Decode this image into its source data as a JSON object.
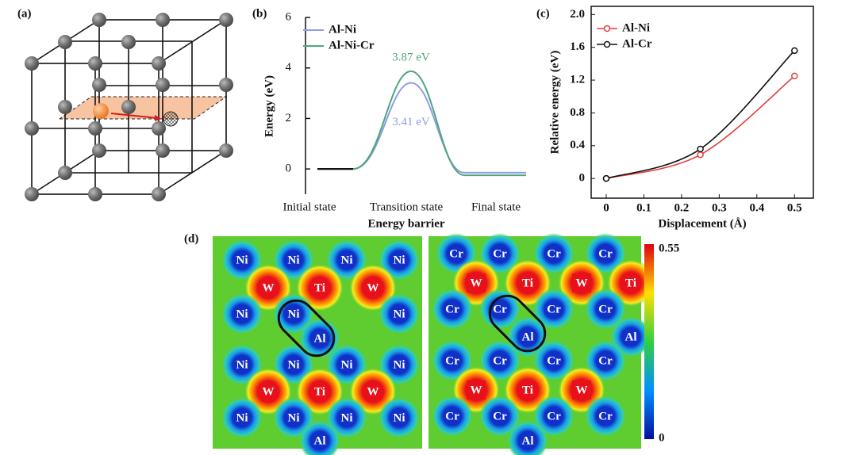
{
  "panel_labels": [
    "(a)",
    "(b)",
    "(c)",
    "(d)"
  ],
  "chart_data": [
    {
      "type": "barrier",
      "ylabel": "Energy (eV)",
      "xlabel": "Energy barrier",
      "categories": [
        "Initial state",
        "Transition state",
        "Final state"
      ],
      "ylim": [
        -1,
        6
      ],
      "yticks": [
        0,
        2,
        4,
        6
      ],
      "series": [
        {
          "name": "Al-Ni",
          "color": "#8d9de6",
          "values": [
            0,
            3.41,
            -0.15
          ],
          "value_labels": [
            null,
            "3.41 eV",
            null
          ]
        },
        {
          "name": "Al-Ni-Cr",
          "color": "#4ea67c",
          "values": [
            0,
            3.87,
            -0.25
          ],
          "value_labels": [
            null,
            "3.87 eV",
            null
          ]
        }
      ],
      "legend": "upper left"
    },
    {
      "type": "line",
      "ylabel": "Relative energy (eV)",
      "xlabel": "Displacement (Å)",
      "x": [
        0,
        0.25,
        0.5
      ],
      "xlim": [
        -0.04,
        0.55
      ],
      "ylim": [
        -0.24,
        2.1
      ],
      "xticks": [
        0,
        0.1,
        0.2,
        0.3,
        0.4,
        0.5
      ],
      "yticks": [
        0,
        0.4,
        0.8,
        1.2,
        1.6,
        {
          "value": 2,
          "label": "2.0"
        }
      ],
      "series": [
        {
          "name": "Al-Ni",
          "color": "#e0403c",
          "values": [
            0,
            0.29,
            1.25
          ]
        },
        {
          "name": "Al-Cr",
          "color": "#111111",
          "values": [
            0,
            0.36,
            1.56
          ]
        }
      ],
      "legend": "upper left"
    }
  ],
  "maps": [
    {
      "atoms": [
        "Ni",
        "Ni",
        "Ni",
        "Ni",
        "W",
        "Ti",
        "W",
        "Ni",
        "Ni",
        "Ni",
        "Al",
        "Ni",
        "Ni",
        "Ni",
        "Ni",
        "W",
        "Ti",
        "W",
        "Ni",
        "Ni",
        "Ni",
        "Ni",
        "Al"
      ]
    },
    {
      "atoms": [
        "Cr",
        "Cr",
        "Cr",
        "Cr",
        "W",
        "Ti",
        "W",
        "Ti",
        "Cr",
        "Cr",
        "Cr",
        "Cr",
        "Al",
        "Al",
        "Cr",
        "Cr",
        "Cr",
        "Cr",
        "W",
        "Ti",
        "W",
        "Cr",
        "Cr",
        "Cr",
        "Cr",
        "Al"
      ]
    }
  ],
  "colorbar": {
    "max": "0.55",
    "min": "0"
  }
}
